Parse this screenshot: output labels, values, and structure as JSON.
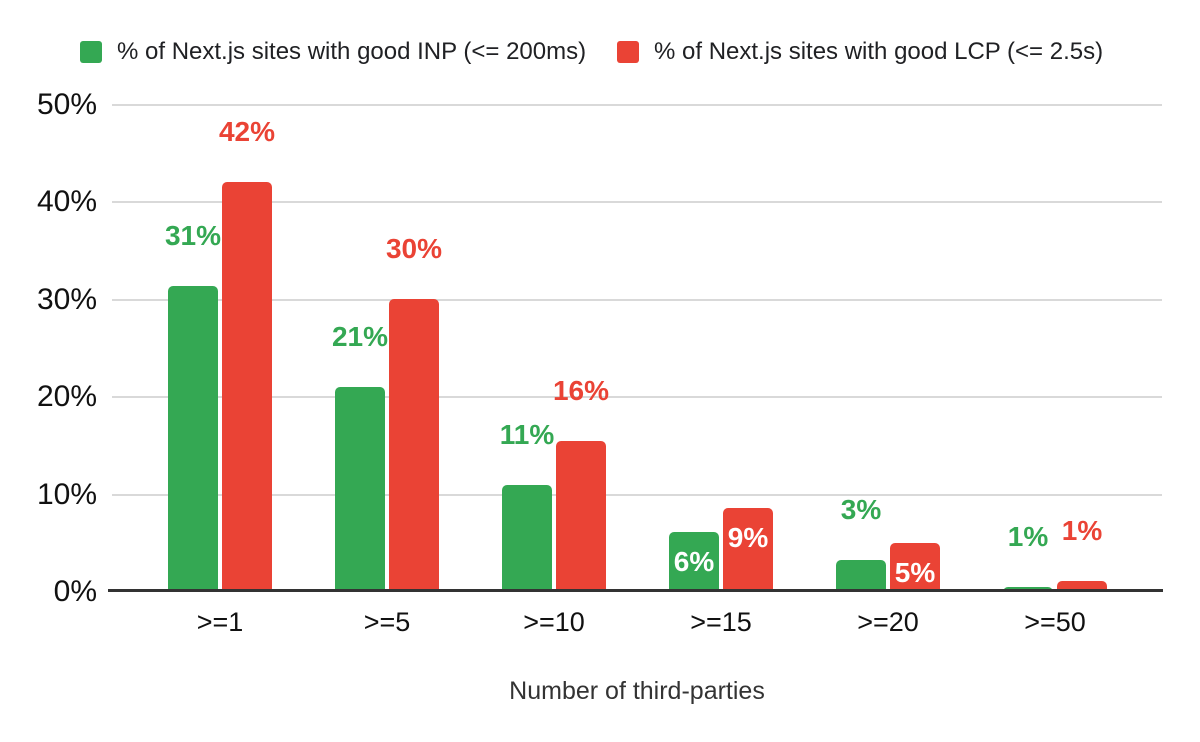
{
  "chart_data": {
    "type": "bar",
    "title": "",
    "categories": [
      ">=1",
      ">=5",
      ">=10",
      ">=15",
      ">=20",
      ">=50"
    ],
    "series": [
      {
        "name": "% of Next.js sites with good INP (<= 200ms)",
        "color": "#34a853",
        "values": [
          31,
          21,
          11,
          6,
          3,
          1
        ],
        "values_precise": [
          31.4,
          21,
          11,
          6.2,
          3.3,
          0.5
        ],
        "labels": [
          "31%",
          "21%",
          "11%",
          "6%",
          "3%",
          "1%"
        ],
        "label_placement": [
          "above",
          "above",
          "above",
          "inside",
          "above",
          "above"
        ]
      },
      {
        "name": "% of Next.js sites with good LCP (<= 2.5s)",
        "color": "#ea4335",
        "values": [
          42,
          30,
          16,
          9,
          5,
          1
        ],
        "values_precise": [
          42.1,
          30.1,
          15.5,
          8.6,
          5.0,
          1.1
        ],
        "labels": [
          "42%",
          "30%",
          "16%",
          "9%",
          "5%",
          "1%"
        ],
        "label_placement": [
          "above",
          "above",
          "above",
          "inside",
          "inside",
          "above"
        ]
      }
    ],
    "xlabel": "Number of third-parties",
    "ylabel": "",
    "ylim": [
      0,
      50
    ],
    "yticks": [
      "0%",
      "10%",
      "20%",
      "30%",
      "40%",
      "50%"
    ],
    "grid": true,
    "legend_position": "top"
  },
  "colors": {
    "series_inp": "#34a853",
    "series_lcp": "#ea4335",
    "gridline": "#d9d9d9",
    "axis_line": "#333333",
    "tick_text": "#111111",
    "inside_label_text": "#ffffff",
    "legend_text": "#202124",
    "background": "#ffffff"
  }
}
